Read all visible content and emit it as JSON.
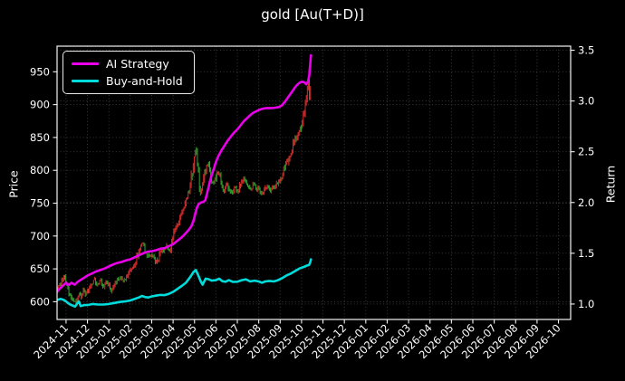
{
  "chart_data": {
    "type": "candlestick+line",
    "title": "gold [Au(T+D)]",
    "ylabel_left": "Price",
    "ylabel_right": "Return",
    "x_tick_labels": [
      "2024-11",
      "2024-12",
      "2025-01",
      "2025-02",
      "2025-03",
      "2025-04",
      "2025-05",
      "2025-06",
      "2025-07",
      "2025-08",
      "2025-09",
      "2025-10",
      "2025-11",
      "2025-12",
      "2026-01",
      "2026-02",
      "2026-03",
      "2026-04",
      "2026-05",
      "2026-06",
      "2026-07",
      "2026-08",
      "2026-09",
      "2026-10"
    ],
    "xlim_months": [
      -0.42,
      23.57
    ],
    "price_ticks": [
      600,
      650,
      700,
      750,
      800,
      850,
      900,
      950
    ],
    "price_lim": [
      573,
      989
    ],
    "return_ticks": [
      1.0,
      1.5,
      2.0,
      2.5,
      3.0,
      3.5
    ],
    "return_lim": [
      0.848,
      3.54
    ],
    "grid": {
      "visible": true,
      "style": "dotted"
    },
    "legend": {
      "position": "upper-left",
      "items": [
        {
          "label": "AI Strategy",
          "color": "#ea00ea"
        },
        {
          "label": "Buy-and-Hold",
          "color": "#00dcdc"
        }
      ]
    },
    "colors": {
      "background": "#000000",
      "text": "#ffffff",
      "grid": "#3f3f3f",
      "axis": "#f2f2f2",
      "candle_up": "#d22a2a",
      "candle_down": "#2e9e2e",
      "ai_strategy": "#ea00ea",
      "buy_and_hold": "#00dcdc"
    },
    "price_series": {
      "name": "Au(T+D) daily price bars",
      "style": "ohlc-bars",
      "bars_approx": 247,
      "points": [
        [
          -0.42,
          616
        ],
        [
          -0.33,
          628
        ],
        [
          -0.25,
          622
        ],
        [
          -0.17,
          634
        ],
        [
          -0.08,
          640
        ],
        [
          0,
          628
        ],
        [
          0.1,
          617
        ],
        [
          0.2,
          608
        ],
        [
          0.3,
          601
        ],
        [
          0.4,
          597
        ],
        [
          0.5,
          603
        ],
        [
          0.6,
          610
        ],
        [
          0.7,
          606
        ],
        [
          0.8,
          615
        ],
        [
          0.9,
          611
        ],
        [
          1,
          616
        ],
        [
          1.1,
          622
        ],
        [
          1.2,
          628
        ],
        [
          1.3,
          634
        ],
        [
          1.45,
          626
        ],
        [
          1.6,
          631
        ],
        [
          1.75,
          624
        ],
        [
          1.9,
          629
        ],
        [
          2,
          624
        ],
        [
          2.1,
          618
        ],
        [
          2.2,
          625
        ],
        [
          2.35,
          633
        ],
        [
          2.5,
          638
        ],
        [
          2.65,
          631
        ],
        [
          2.8,
          636
        ],
        [
          2.95,
          644
        ],
        [
          3.1,
          652
        ],
        [
          3.25,
          664
        ],
        [
          3.4,
          676
        ],
        [
          3.55,
          692
        ],
        [
          3.65,
          683
        ],
        [
          3.75,
          672
        ],
        [
          3.9,
          668
        ],
        [
          4,
          673
        ],
        [
          4.1,
          665
        ],
        [
          4.25,
          661
        ],
        [
          4.4,
          672
        ],
        [
          4.55,
          680
        ],
        [
          4.7,
          687
        ],
        [
          4.85,
          679
        ],
        [
          5,
          700
        ],
        [
          5.15,
          713
        ],
        [
          5.3,
          727
        ],
        [
          5.45,
          740
        ],
        [
          5.6,
          753
        ],
        [
          5.75,
          768
        ],
        [
          5.88,
          795
        ],
        [
          6,
          822
        ],
        [
          6.08,
          835
        ],
        [
          6.18,
          795
        ],
        [
          6.28,
          764
        ],
        [
          6.4,
          786
        ],
        [
          6.5,
          800
        ],
        [
          6.62,
          812
        ],
        [
          6.75,
          794
        ],
        [
          6.88,
          778
        ],
        [
          7,
          790
        ],
        [
          7.12,
          799
        ],
        [
          7.25,
          780
        ],
        [
          7.38,
          769
        ],
        [
          7.5,
          780
        ],
        [
          7.62,
          772
        ],
        [
          7.75,
          766
        ],
        [
          7.88,
          772
        ],
        [
          8,
          770
        ],
        [
          8.15,
          777
        ],
        [
          8.3,
          786
        ],
        [
          8.45,
          780
        ],
        [
          8.6,
          771
        ],
        [
          8.75,
          779
        ],
        [
          8.9,
          773
        ],
        [
          9,
          769
        ],
        [
          9.12,
          762
        ],
        [
          9.25,
          771
        ],
        [
          9.4,
          778
        ],
        [
          9.55,
          770
        ],
        [
          9.7,
          776
        ],
        [
          9.85,
          781
        ],
        [
          10,
          786
        ],
        [
          10.15,
          800
        ],
        [
          10.3,
          812
        ],
        [
          10.45,
          822
        ],
        [
          10.6,
          838
        ],
        [
          10.75,
          850
        ],
        [
          10.9,
          858
        ],
        [
          11.05,
          875
        ],
        [
          11.15,
          895
        ],
        [
          11.25,
          920
        ],
        [
          11.32,
          938
        ],
        [
          11.37,
          905
        ],
        [
          11.41,
          926
        ],
        [
          11.44,
          948
        ]
      ]
    },
    "series": [
      {
        "name": "AI Strategy",
        "axis": "return",
        "color": "#ea00ea",
        "points": [
          [
            -0.42,
            1.12
          ],
          [
            -0.3,
            1.15
          ],
          [
            -0.2,
            1.17
          ],
          [
            -0.1,
            1.19
          ],
          [
            0,
            1.21
          ],
          [
            0.12,
            1.185
          ],
          [
            0.25,
            1.21
          ],
          [
            0.4,
            1.19
          ],
          [
            0.55,
            1.22
          ],
          [
            0.7,
            1.24
          ],
          [
            0.85,
            1.26
          ],
          [
            1,
            1.28
          ],
          [
            1.2,
            1.3
          ],
          [
            1.4,
            1.32
          ],
          [
            1.6,
            1.335
          ],
          [
            1.8,
            1.35
          ],
          [
            2,
            1.37
          ],
          [
            2.2,
            1.39
          ],
          [
            2.4,
            1.405
          ],
          [
            2.6,
            1.415
          ],
          [
            2.8,
            1.43
          ],
          [
            3,
            1.44
          ],
          [
            3.2,
            1.46
          ],
          [
            3.4,
            1.48
          ],
          [
            3.6,
            1.5
          ],
          [
            3.8,
            1.515
          ],
          [
            4,
            1.52
          ],
          [
            4.2,
            1.53
          ],
          [
            4.4,
            1.545
          ],
          [
            4.6,
            1.55
          ],
          [
            4.8,
            1.57
          ],
          [
            5,
            1.59
          ],
          [
            5.15,
            1.615
          ],
          [
            5.3,
            1.64
          ],
          [
            5.45,
            1.665
          ],
          [
            5.6,
            1.7
          ],
          [
            5.75,
            1.735
          ],
          [
            5.85,
            1.765
          ],
          [
            5.95,
            1.82
          ],
          [
            6.05,
            1.9
          ],
          [
            6.12,
            1.955
          ],
          [
            6.2,
            1.985
          ],
          [
            6.3,
            2.0
          ],
          [
            6.4,
            2.005
          ],
          [
            6.5,
            2.02
          ],
          [
            6.6,
            2.1
          ],
          [
            6.7,
            2.19
          ],
          [
            6.8,
            2.27
          ],
          [
            6.9,
            2.33
          ],
          [
            7,
            2.4
          ],
          [
            7.12,
            2.46
          ],
          [
            7.25,
            2.51
          ],
          [
            7.4,
            2.56
          ],
          [
            7.55,
            2.61
          ],
          [
            7.7,
            2.65
          ],
          [
            7.85,
            2.69
          ],
          [
            8,
            2.72
          ],
          [
            8.15,
            2.76
          ],
          [
            8.3,
            2.8
          ],
          [
            8.45,
            2.83
          ],
          [
            8.6,
            2.86
          ],
          [
            8.75,
            2.885
          ],
          [
            8.9,
            2.9
          ],
          [
            9.05,
            2.915
          ],
          [
            9.2,
            2.925
          ],
          [
            9.35,
            2.93
          ],
          [
            9.5,
            2.93
          ],
          [
            9.65,
            2.93
          ],
          [
            9.8,
            2.935
          ],
          [
            9.95,
            2.94
          ],
          [
            10.1,
            2.96
          ],
          [
            10.25,
            3.0
          ],
          [
            10.4,
            3.045
          ],
          [
            10.55,
            3.09
          ],
          [
            10.7,
            3.135
          ],
          [
            10.82,
            3.165
          ],
          [
            10.95,
            3.185
          ],
          [
            11.05,
            3.19
          ],
          [
            11.15,
            3.18
          ],
          [
            11.22,
            3.165
          ],
          [
            11.3,
            3.19
          ],
          [
            11.36,
            3.25
          ],
          [
            11.44,
            3.45
          ]
        ]
      },
      {
        "name": "Buy-and-Hold",
        "axis": "return",
        "color": "#00dcdc",
        "points": [
          [
            -0.42,
            1.04
          ],
          [
            -0.25,
            1.05
          ],
          [
            -0.1,
            1.04
          ],
          [
            0,
            1.025
          ],
          [
            0.15,
            1.0
          ],
          [
            0.3,
            0.985
          ],
          [
            0.42,
            0.975
          ],
          [
            0.52,
            1.005
          ],
          [
            0.6,
            1.025
          ],
          [
            0.68,
            0.98
          ],
          [
            0.85,
            0.99
          ],
          [
            1,
            0.99
          ],
          [
            1.25,
            1.0
          ],
          [
            1.5,
            0.995
          ],
          [
            1.75,
            0.995
          ],
          [
            2,
            1.0
          ],
          [
            2.25,
            1.01
          ],
          [
            2.5,
            1.02
          ],
          [
            2.75,
            1.025
          ],
          [
            3,
            1.035
          ],
          [
            3.2,
            1.05
          ],
          [
            3.4,
            1.065
          ],
          [
            3.55,
            1.08
          ],
          [
            3.7,
            1.068
          ],
          [
            3.85,
            1.065
          ],
          [
            4,
            1.075
          ],
          [
            4.2,
            1.082
          ],
          [
            4.4,
            1.09
          ],
          [
            4.6,
            1.088
          ],
          [
            4.8,
            1.1
          ],
          [
            5,
            1.12
          ],
          [
            5.2,
            1.148
          ],
          [
            5.4,
            1.178
          ],
          [
            5.6,
            1.21
          ],
          [
            5.8,
            1.265
          ],
          [
            5.95,
            1.315
          ],
          [
            6.06,
            1.335
          ],
          [
            6.2,
            1.27
          ],
          [
            6.3,
            1.22
          ],
          [
            6.38,
            1.19
          ],
          [
            6.52,
            1.25
          ],
          [
            6.65,
            1.245
          ],
          [
            6.8,
            1.23
          ],
          [
            7,
            1.235
          ],
          [
            7.15,
            1.25
          ],
          [
            7.3,
            1.225
          ],
          [
            7.45,
            1.22
          ],
          [
            7.6,
            1.235
          ],
          [
            7.8,
            1.218
          ],
          [
            8,
            1.22
          ],
          [
            8.2,
            1.235
          ],
          [
            8.4,
            1.243
          ],
          [
            8.6,
            1.222
          ],
          [
            8.8,
            1.23
          ],
          [
            9,
            1.222
          ],
          [
            9.15,
            1.21
          ],
          [
            9.3,
            1.222
          ],
          [
            9.5,
            1.228
          ],
          [
            9.7,
            1.222
          ],
          [
            9.9,
            1.235
          ],
          [
            10.1,
            1.255
          ],
          [
            10.3,
            1.282
          ],
          [
            10.5,
            1.3
          ],
          [
            10.7,
            1.325
          ],
          [
            10.9,
            1.35
          ],
          [
            11.1,
            1.365
          ],
          [
            11.25,
            1.378
          ],
          [
            11.35,
            1.385
          ],
          [
            11.4,
            1.41
          ],
          [
            11.44,
            1.44
          ]
        ]
      }
    ]
  }
}
